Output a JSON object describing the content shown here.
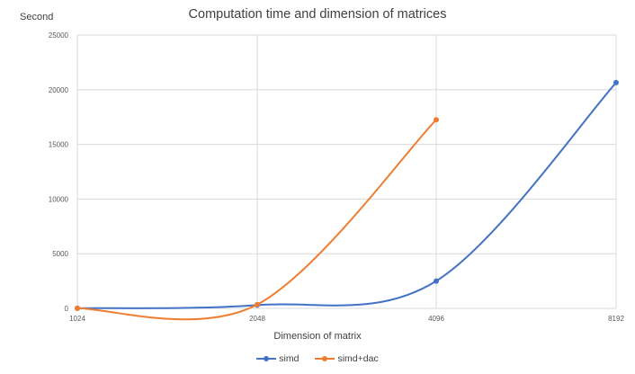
{
  "chart_data": {
    "type": "line",
    "title": "Computation time and dimension of matrices",
    "xlabel": "Dimension of matrix",
    "ylabel": "Second",
    "x": [
      1024,
      2048,
      4096,
      8192
    ],
    "x_tick_labels": [
      "1024",
      "2048",
      "4096",
      "8192"
    ],
    "y_ticks": [
      0,
      5000,
      10000,
      15000,
      20000,
      25000
    ],
    "ylim": [
      0,
      25000
    ],
    "grid": true,
    "legend_position": "bottom",
    "series": [
      {
        "name": "simd",
        "color": "#4472C4",
        "values": [
          10,
          300,
          2500,
          20650
        ]
      },
      {
        "name": "simd+dac",
        "color": "#ED7D31",
        "values": [
          10,
          350,
          17250,
          null
        ]
      }
    ]
  }
}
